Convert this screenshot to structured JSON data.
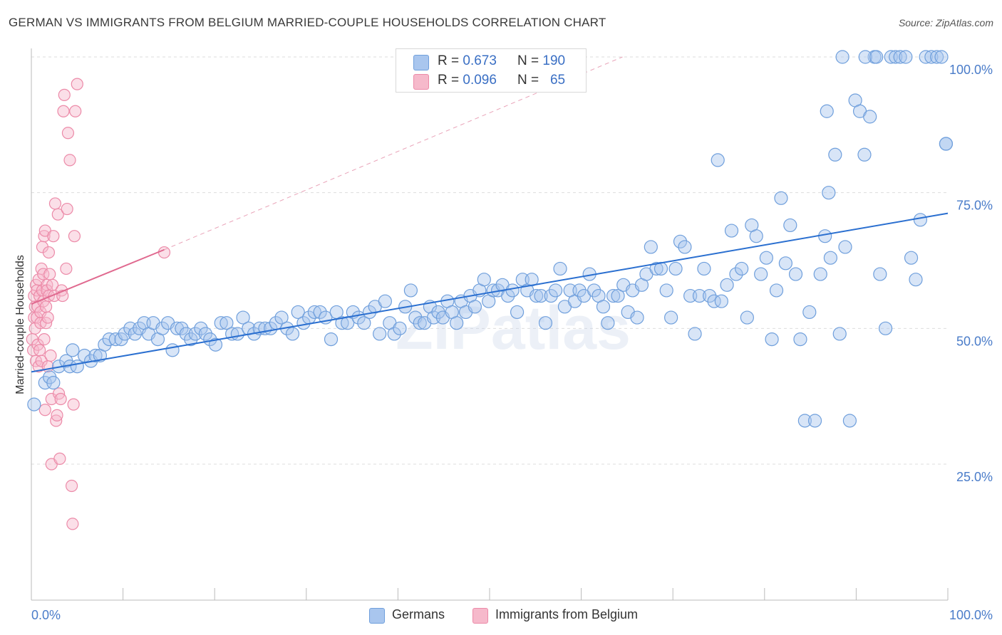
{
  "title": "GERMAN VS IMMIGRANTS FROM BELGIUM MARRIED-COUPLE HOUSEHOLDS CORRELATION CHART",
  "source": "Source: ZipAtlas.com",
  "watermark": "ZIPatlas",
  "colors": {
    "blue_fill": "#a9c6ee",
    "blue_stroke": "#6f9fdc",
    "blue_line": "#2a6fd0",
    "pink_fill": "#f6b9cb",
    "pink_stroke": "#ec8aa8",
    "pink_line": "#e0698f",
    "tick_text": "#4a7cc9",
    "grid": "#dddddd"
  },
  "legend": {
    "rows": [
      {
        "r_label": "R =",
        "r_value": "0.673",
        "n_label": "N =",
        "n_value": "190",
        "swatch": "blue"
      },
      {
        "r_label": "R =",
        "r_value": "0.096",
        "n_label": "N =",
        "n_value": "65",
        "swatch": "pink"
      }
    ]
  },
  "bottom_legend": [
    {
      "label": "Germans",
      "swatch": "blue"
    },
    {
      "label": "Immigrants from Belgium",
      "swatch": "pink"
    }
  ],
  "chart_data": {
    "type": "scatter",
    "title": "GERMAN VS IMMIGRANTS FROM BELGIUM MARRIED-COUPLE HOUSEHOLDS CORRELATION CHART",
    "xlabel": "",
    "ylabel": "Married-couple Households",
    "xlim": [
      0,
      100
    ],
    "ylim": [
      0,
      105
    ],
    "x_tick_labels": [
      "0.0%",
      "100.0%"
    ],
    "y_ticks": [
      25,
      50,
      75,
      100
    ],
    "y_tick_labels": [
      "25.0%",
      "50.0%",
      "75.0%",
      "100.0%"
    ],
    "grid": true,
    "legend_placement": "top-center",
    "series": [
      {
        "name": "Germans",
        "color": "#a9c6ee",
        "trend": {
          "x": [
            0,
            100
          ],
          "y": [
            42.0,
            71.2
          ]
        },
        "points": [
          [
            0.3,
            36
          ],
          [
            1.5,
            40
          ],
          [
            2.0,
            41
          ],
          [
            2.4,
            40
          ],
          [
            3.0,
            43
          ],
          [
            3.8,
            44
          ],
          [
            4.2,
            43
          ],
          [
            4.5,
            46
          ],
          [
            5.0,
            43
          ],
          [
            5.8,
            45
          ],
          [
            6.5,
            44
          ],
          [
            7.0,
            45
          ],
          [
            7.5,
            45
          ],
          [
            8.0,
            47
          ],
          [
            8.5,
            48
          ],
          [
            9.2,
            48
          ],
          [
            9.8,
            48
          ],
          [
            10.2,
            49
          ],
          [
            10.8,
            50
          ],
          [
            11.3,
            49
          ],
          [
            11.8,
            50
          ],
          [
            12.3,
            51
          ],
          [
            12.8,
            49
          ],
          [
            13.3,
            51
          ],
          [
            13.8,
            48
          ],
          [
            14.3,
            50
          ],
          [
            14.9,
            51
          ],
          [
            15.4,
            46
          ],
          [
            15.9,
            50
          ],
          [
            16.4,
            50
          ],
          [
            16.9,
            49
          ],
          [
            17.4,
            48
          ],
          [
            17.9,
            49
          ],
          [
            18.5,
            50
          ],
          [
            19.0,
            49
          ],
          [
            19.5,
            48
          ],
          [
            20.1,
            47
          ],
          [
            20.7,
            51
          ],
          [
            21.3,
            51
          ],
          [
            21.9,
            49
          ],
          [
            22.5,
            49
          ],
          [
            23.1,
            52
          ],
          [
            23.7,
            50
          ],
          [
            24.3,
            49
          ],
          [
            24.9,
            50
          ],
          [
            25.5,
            50
          ],
          [
            26.1,
            50
          ],
          [
            26.7,
            51
          ],
          [
            27.3,
            52
          ],
          [
            27.9,
            50
          ],
          [
            28.5,
            49
          ],
          [
            29.1,
            53
          ],
          [
            29.7,
            51
          ],
          [
            30.3,
            52
          ],
          [
            30.9,
            53
          ],
          [
            31.5,
            53
          ],
          [
            32.1,
            52
          ],
          [
            32.7,
            48
          ],
          [
            33.3,
            53
          ],
          [
            33.9,
            51
          ],
          [
            34.5,
            51
          ],
          [
            35.1,
            53
          ],
          [
            35.7,
            52
          ],
          [
            36.3,
            51
          ],
          [
            36.9,
            53
          ],
          [
            37.5,
            54
          ],
          [
            38.0,
            49
          ],
          [
            38.6,
            55
          ],
          [
            39.1,
            51
          ],
          [
            39.6,
            49
          ],
          [
            40.2,
            50
          ],
          [
            40.8,
            54
          ],
          [
            41.4,
            57
          ],
          [
            41.9,
            52
          ],
          [
            42.4,
            51
          ],
          [
            42.9,
            51
          ],
          [
            43.5,
            54
          ],
          [
            43.9,
            52
          ],
          [
            44.4,
            53
          ],
          [
            44.9,
            52
          ],
          [
            45.4,
            55
          ],
          [
            45.9,
            53
          ],
          [
            46.4,
            51
          ],
          [
            46.9,
            55
          ],
          [
            47.4,
            53
          ],
          [
            47.9,
            56
          ],
          [
            48.4,
            54
          ],
          [
            48.9,
            57
          ],
          [
            49.4,
            59
          ],
          [
            49.9,
            55
          ],
          [
            50.4,
            57
          ],
          [
            50.9,
            57
          ],
          [
            51.4,
            58
          ],
          [
            52.0,
            56
          ],
          [
            52.5,
            57
          ],
          [
            53.0,
            53
          ],
          [
            53.6,
            59
          ],
          [
            54.1,
            57
          ],
          [
            54.6,
            59
          ],
          [
            55.1,
            56
          ],
          [
            55.6,
            56
          ],
          [
            56.1,
            51
          ],
          [
            56.7,
            56
          ],
          [
            57.2,
            57
          ],
          [
            57.7,
            61
          ],
          [
            58.2,
            54
          ],
          [
            58.8,
            57
          ],
          [
            59.3,
            55
          ],
          [
            59.8,
            57
          ],
          [
            60.3,
            56
          ],
          [
            60.9,
            60
          ],
          [
            61.4,
            57
          ],
          [
            61.9,
            56
          ],
          [
            62.4,
            54
          ],
          [
            62.9,
            51
          ],
          [
            63.5,
            56
          ],
          [
            64.0,
            56
          ],
          [
            64.6,
            58
          ],
          [
            65.1,
            53
          ],
          [
            65.6,
            57
          ],
          [
            66.1,
            52
          ],
          [
            66.6,
            58
          ],
          [
            67.1,
            60
          ],
          [
            67.6,
            65
          ],
          [
            68.2,
            61
          ],
          [
            68.7,
            61
          ],
          [
            69.3,
            57
          ],
          [
            69.8,
            52
          ],
          [
            70.3,
            61
          ],
          [
            70.8,
            66
          ],
          [
            71.3,
            65
          ],
          [
            71.9,
            56
          ],
          [
            72.4,
            49
          ],
          [
            72.9,
            56
          ],
          [
            73.4,
            61
          ],
          [
            74.0,
            56
          ],
          [
            74.5,
            55
          ],
          [
            74.9,
            81
          ],
          [
            75.3,
            55
          ],
          [
            75.9,
            58
          ],
          [
            76.4,
            68
          ],
          [
            76.9,
            60
          ],
          [
            77.5,
            61
          ],
          [
            78.1,
            52
          ],
          [
            78.6,
            69
          ],
          [
            79.1,
            67
          ],
          [
            79.6,
            60
          ],
          [
            80.2,
            63
          ],
          [
            80.8,
            48
          ],
          [
            81.3,
            57
          ],
          [
            81.8,
            74
          ],
          [
            82.3,
            62
          ],
          [
            82.8,
            69
          ],
          [
            83.4,
            60
          ],
          [
            83.9,
            48
          ],
          [
            84.4,
            33
          ],
          [
            84.9,
            53
          ],
          [
            85.5,
            33
          ],
          [
            86.1,
            60
          ],
          [
            86.6,
            67
          ],
          [
            87.2,
            63
          ],
          [
            87.7,
            82
          ],
          [
            88.2,
            49
          ],
          [
            88.8,
            65
          ],
          [
            89.3,
            33
          ],
          [
            89.9,
            92
          ],
          [
            90.4,
            90
          ],
          [
            90.9,
            82
          ],
          [
            91.5,
            89
          ],
          [
            92.0,
            100
          ],
          [
            92.6,
            60
          ],
          [
            93.2,
            50
          ],
          [
            93.8,
            100
          ],
          [
            94.3,
            100
          ],
          [
            94.8,
            100
          ],
          [
            95.4,
            100
          ],
          [
            96.0,
            63
          ],
          [
            96.5,
            59
          ],
          [
            97.0,
            70
          ],
          [
            97.6,
            100
          ],
          [
            98.2,
            100
          ],
          [
            98.8,
            100
          ],
          [
            99.3,
            100
          ],
          [
            99.8,
            84
          ],
          [
            99.8,
            84
          ],
          [
            88.5,
            100
          ],
          [
            91.0,
            100
          ],
          [
            92.2,
            100
          ],
          [
            87.0,
            75
          ],
          [
            86.8,
            90
          ]
        ]
      },
      {
        "name": "Immigrants from Belgium",
        "color": "#f6b9cb",
        "trend": {
          "x": [
            0,
            14.5
          ],
          "y": [
            54.5,
            64.5
          ]
        },
        "trend_extension": {
          "x": [
            14.5,
            64.5
          ],
          "y": [
            64.5,
            100
          ]
        },
        "points": [
          [
            0.1,
            48
          ],
          [
            0.2,
            46
          ],
          [
            0.3,
            52
          ],
          [
            0.3,
            56
          ],
          [
            0.4,
            50
          ],
          [
            0.4,
            54
          ],
          [
            0.5,
            58
          ],
          [
            0.5,
            44
          ],
          [
            0.6,
            52
          ],
          [
            0.6,
            57
          ],
          [
            0.7,
            47
          ],
          [
            0.7,
            54
          ],
          [
            0.8,
            43
          ],
          [
            0.8,
            59
          ],
          [
            0.9,
            46
          ],
          [
            0.9,
            56
          ],
          [
            1.0,
            51
          ],
          [
            1.0,
            53
          ],
          [
            1.1,
            44
          ],
          [
            1.1,
            61
          ],
          [
            1.2,
            57
          ],
          [
            1.2,
            65
          ],
          [
            1.3,
            55
          ],
          [
            1.3,
            60
          ],
          [
            1.4,
            48
          ],
          [
            1.4,
            67
          ],
          [
            1.5,
            35
          ],
          [
            1.5,
            68
          ],
          [
            1.6,
            51
          ],
          [
            1.6,
            54
          ],
          [
            1.7,
            58
          ],
          [
            1.7,
            57
          ],
          [
            1.8,
            52
          ],
          [
            1.8,
            43
          ],
          [
            1.9,
            64
          ],
          [
            1.9,
            56
          ],
          [
            2.0,
            60
          ],
          [
            2.1,
            45
          ],
          [
            2.2,
            25
          ],
          [
            2.2,
            37
          ],
          [
            2.3,
            58
          ],
          [
            2.4,
            67
          ],
          [
            2.5,
            56
          ],
          [
            2.6,
            73
          ],
          [
            2.7,
            33
          ],
          [
            2.8,
            34
          ],
          [
            2.9,
            71
          ],
          [
            3.0,
            38
          ],
          [
            3.1,
            26
          ],
          [
            3.2,
            37
          ],
          [
            3.3,
            57
          ],
          [
            3.4,
            56
          ],
          [
            3.5,
            90
          ],
          [
            3.6,
            93
          ],
          [
            3.8,
            61
          ],
          [
            3.9,
            72
          ],
          [
            4.0,
            86
          ],
          [
            4.2,
            81
          ],
          [
            4.4,
            21
          ],
          [
            4.5,
            14
          ],
          [
            4.6,
            36
          ],
          [
            4.7,
            67
          ],
          [
            4.8,
            90
          ],
          [
            5.0,
            95
          ],
          [
            14.5,
            64
          ]
        ]
      }
    ]
  }
}
